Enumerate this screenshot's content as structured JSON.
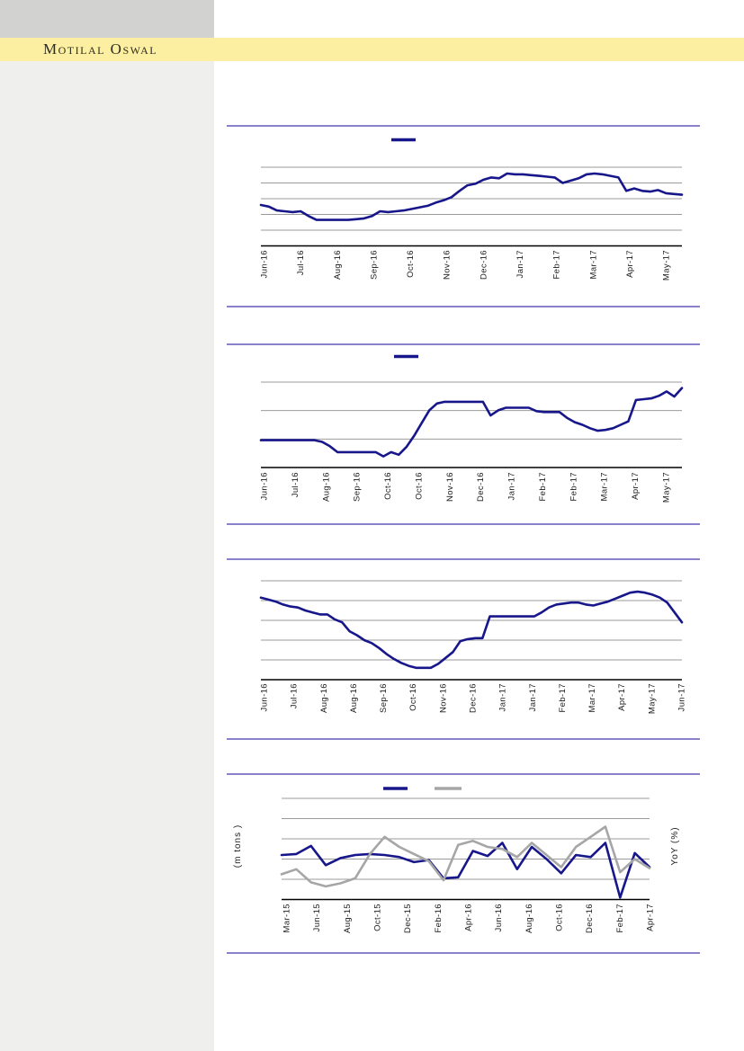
{
  "header": {
    "brand": "Motilal Oswal"
  },
  "colors": {
    "accent_navy": "#17178B",
    "series_gray": "#A6A6A6",
    "separator_purple": "#7A6FC4",
    "banner_yellow": "#FCEFA1",
    "sidebar_gray": "#EFEFED",
    "logo_block_gray": "#D2D2D0",
    "gridline_gray": "#9B9B9B",
    "axis_black": "#000000",
    "label_text": "#1A1A1A"
  },
  "chart_data": [
    {
      "type": "line",
      "categories": [
        "Jun-16",
        "Jul-16",
        "Aug-16",
        "Sep-16",
        "Oct-16",
        "Nov-16",
        "Dec-16",
        "Jan-17",
        "Feb-17",
        "Mar-17",
        "Apr-17",
        "May-17"
      ],
      "series": [
        {
          "name": "",
          "color_ref": "accent_navy",
          "values": [
            52,
            50,
            45,
            44,
            43,
            44,
            38,
            33,
            33,
            33,
            33,
            33,
            34,
            35,
            38,
            44,
            43,
            44,
            45,
            47,
            49,
            51,
            55,
            58,
            62,
            70,
            77,
            79,
            84,
            87,
            86,
            92,
            91,
            91,
            90,
            89,
            88,
            87,
            80,
            83,
            86,
            91,
            92,
            91,
            89,
            87,
            70,
            73,
            70,
            69,
            71,
            67,
            66,
            65
          ]
        }
      ],
      "legend": {
        "visible": true,
        "labels_visible": false,
        "position": "top-center"
      },
      "x_axis": {
        "labels_rotated": true
      },
      "y_axis": {
        "tick_labels_visible": false,
        "values_normalized_0_100": true,
        "gridlines": 5
      }
    },
    {
      "type": "line",
      "categories": [
        "Jun-16",
        "Jul-16",
        "Aug-16",
        "Sep-16",
        "Oct-16",
        "Oct-16",
        "Nov-16",
        "Dec-16",
        "Jan-17",
        "Feb-17",
        "Feb-17",
        "Mar-17",
        "Apr-17",
        "May-17"
      ],
      "series": [
        {
          "name": "",
          "color_ref": "accent_navy",
          "values": [
            32,
            32,
            32,
            32,
            32,
            32,
            32,
            32,
            30,
            25,
            18,
            18,
            18,
            18,
            18,
            18,
            13,
            18,
            15,
            24,
            37,
            52,
            67,
            75,
            77,
            77,
            77,
            77,
            77,
            77,
            61,
            67,
            70,
            70,
            70,
            70,
            66,
            65,
            65,
            65,
            58,
            53,
            50,
            46,
            43,
            44,
            46,
            50,
            54,
            79,
            80,
            81,
            84,
            89,
            83,
            93
          ]
        }
      ],
      "legend": {
        "visible": true,
        "labels_visible": false,
        "position": "top-center"
      },
      "x_axis": {
        "labels_rotated": true
      },
      "y_axis": {
        "tick_labels_visible": false,
        "values_normalized_0_100": true,
        "gridlines": 3
      }
    },
    {
      "type": "line",
      "categories": [
        "Jun-16",
        "Jul-16",
        "Aug-16",
        "Aug-16",
        "Sep-16",
        "Oct-16",
        "Nov-16",
        "Dec-16",
        "Jan-17",
        "Jan-17",
        "Feb-17",
        "Mar-17",
        "Apr-17",
        "May-17",
        "Jun-17"
      ],
      "series": [
        {
          "name": "",
          "color_ref": "accent_navy",
          "values": [
            83,
            81,
            79,
            76,
            74,
            73,
            70,
            68,
            66,
            66,
            61,
            58,
            49,
            45,
            40,
            37,
            32,
            26,
            21,
            17,
            14,
            12,
            12,
            12,
            16,
            22,
            28,
            39,
            41,
            42,
            42,
            64,
            64,
            64,
            64,
            64,
            64,
            64,
            68,
            73,
            76,
            77,
            78,
            78,
            76,
            75,
            77,
            79,
            82,
            85,
            88,
            89,
            88,
            86,
            83,
            78,
            68,
            58
          ]
        }
      ],
      "legend": {
        "visible": false,
        "labels_visible": false,
        "position": "none"
      },
      "x_axis": {
        "labels_rotated": true
      },
      "y_axis": {
        "tick_labels_visible": false,
        "values_normalized_0_100": true,
        "gridlines": 5
      }
    },
    {
      "type": "line",
      "categories": [
        "Mar-15",
        "Jun-15",
        "Aug-15",
        "Oct-15",
        "Dec-15",
        "Feb-16",
        "Apr-16",
        "Jun-16",
        "Aug-16",
        "Oct-16",
        "Dec-16",
        "Feb-17",
        "Apr-17"
      ],
      "ylabel_left": "(m tons )",
      "ylabel_right": "YoY (%)",
      "series": [
        {
          "name": "",
          "color_ref": "accent_navy",
          "values": [
            44,
            45,
            53,
            34,
            41,
            44,
            45,
            44,
            42,
            37,
            39,
            21,
            22,
            48,
            43,
            56,
            30,
            52,
            40,
            26,
            44,
            42,
            56,
            2,
            46,
            32
          ]
        },
        {
          "name": "",
          "color_ref": "series_gray",
          "values": [
            25,
            30,
            17,
            13,
            16,
            21,
            45,
            62,
            52,
            45,
            38,
            19,
            54,
            58,
            52,
            50,
            42,
            56,
            44,
            32,
            52,
            62,
            72,
            27,
            40,
            31
          ]
        }
      ],
      "legend": {
        "visible": true,
        "labels_visible": false,
        "position": "top-center"
      },
      "x_axis": {
        "labels_rotated": true
      },
      "y_axis": {
        "tick_labels_visible": false,
        "values_normalized_0_100": true,
        "gridlines": 5
      }
    }
  ]
}
